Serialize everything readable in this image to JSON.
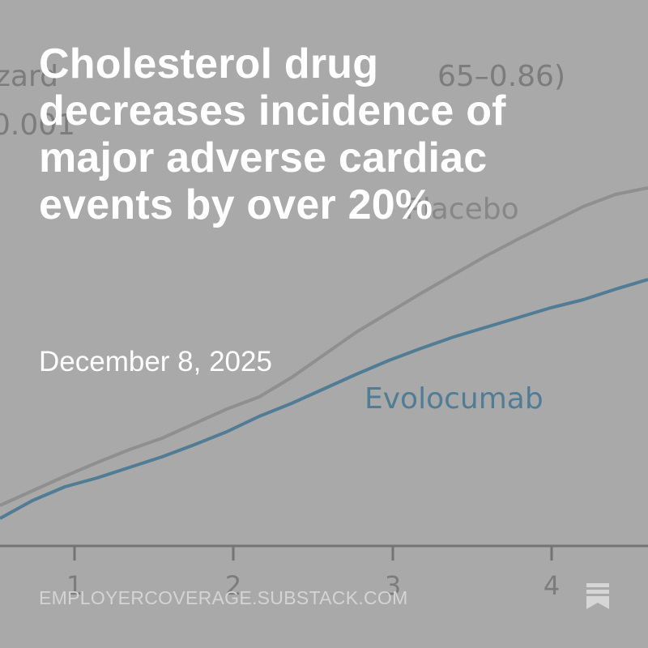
{
  "post": {
    "headline": "Cholesterol drug decreases incidence of major adverse cardiac events by over 20%",
    "date": "December 8, 2025",
    "domain": "EMPLOYERCOVERAGE.SUBSTACK.COM"
  },
  "background_figure": {
    "hazard_text_fragment": "zard",
    "ci_text_fragment": "65–0.86)",
    "p_value_fragment": "0.001",
    "placebo_label": "Placebo",
    "evolocumab_label": "Evolocumab",
    "x_ticks": [
      "1",
      "2",
      "3",
      "4"
    ],
    "colors": {
      "placebo_line": "#858585",
      "evolocumab_line": "#2f6d8e",
      "overlay": "#a9a9a9"
    }
  },
  "icons": {
    "bookmark": "bookmark-icon"
  }
}
